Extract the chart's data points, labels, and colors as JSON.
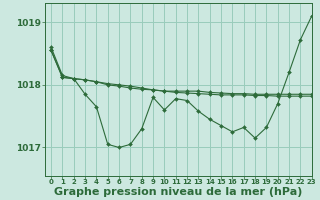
{
  "background_color": "#cce8e0",
  "grid_color": "#99ccbb",
  "line_color": "#2d6b3a",
  "title": "Graphe pression niveau de la mer (hPa)",
  "xlim": [
    -0.5,
    23
  ],
  "ylim": [
    1016.55,
    1019.3
  ],
  "yticks": [
    1017,
    1018,
    1019
  ],
  "xticks": [
    0,
    1,
    2,
    3,
    4,
    5,
    6,
    7,
    8,
    9,
    10,
    11,
    12,
    13,
    14,
    15,
    16,
    17,
    18,
    19,
    20,
    21,
    22,
    23
  ],
  "line1": [
    1018.6,
    1018.15,
    1018.1,
    1017.85,
    1017.65,
    1017.05,
    1017.0,
    1017.05,
    1017.3,
    1017.8,
    1017.6,
    1017.78,
    1017.75,
    1017.58,
    1017.45,
    1017.35,
    1017.25,
    1017.32,
    1017.15,
    1017.32,
    1017.7,
    1018.2,
    1018.72,
    1019.1
  ],
  "line2": [
    1018.55,
    1018.12,
    1018.1,
    1018.08,
    1018.05,
    1018.02,
    1018.0,
    1017.98,
    1017.95,
    1017.92,
    1017.9,
    1017.88,
    1017.87,
    1017.86,
    1017.85,
    1017.84,
    1017.84,
    1017.84,
    1017.83,
    1017.83,
    1017.82,
    1017.82,
    1017.82,
    1017.82
  ],
  "line3": [
    1018.55,
    1018.12,
    1018.1,
    1018.08,
    1018.05,
    1018.0,
    1017.98,
    1017.95,
    1017.93,
    1017.92,
    1017.9,
    1017.9,
    1017.9,
    1017.9,
    1017.88,
    1017.87,
    1017.86,
    1017.86,
    1017.85,
    1017.85,
    1017.85,
    1017.85,
    1017.85,
    1017.85
  ],
  "title_fontsize": 8,
  "tick_fontsize": 6
}
